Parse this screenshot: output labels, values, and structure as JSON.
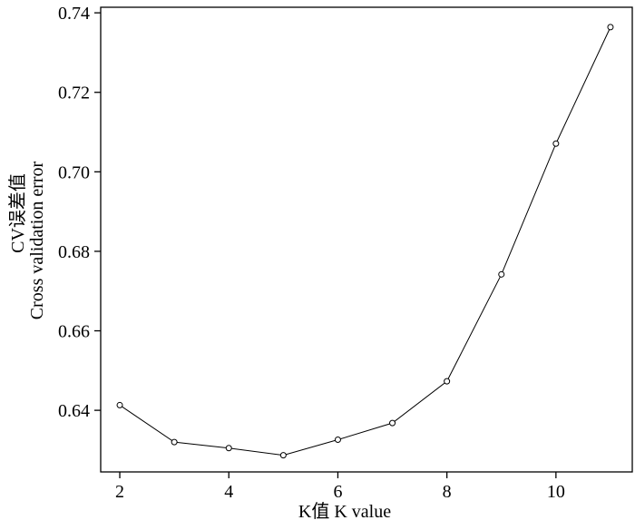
{
  "chart_data": {
    "type": "line",
    "x_label": "K值 K value",
    "y_label": [
      "CV误差值",
      "Cross validation error"
    ],
    "x": [
      2,
      3,
      4,
      5,
      6,
      7,
      8,
      9,
      10,
      11
    ],
    "values": [
      0.6413,
      0.632,
      0.6305,
      0.6287,
      0.6326,
      0.6368,
      0.6473,
      0.6742,
      0.7071,
      0.7364
    ],
    "color": "#000000",
    "xlim": [
      1.65,
      11.4
    ],
    "xticks": [
      2,
      4,
      6,
      8,
      10
    ],
    "ylim": [
      0.6245,
      0.7414
    ],
    "yticks": [
      {
        "value": 0.64,
        "label": "0.64"
      },
      {
        "value": 0.66,
        "label": "0.66"
      },
      {
        "value": 0.68,
        "label": "0.68"
      },
      {
        "value": 0.7,
        "label": "0.70"
      },
      {
        "value": 0.72,
        "label": "0.72"
      },
      {
        "value": 0.74,
        "label": "0.74"
      }
    ]
  }
}
